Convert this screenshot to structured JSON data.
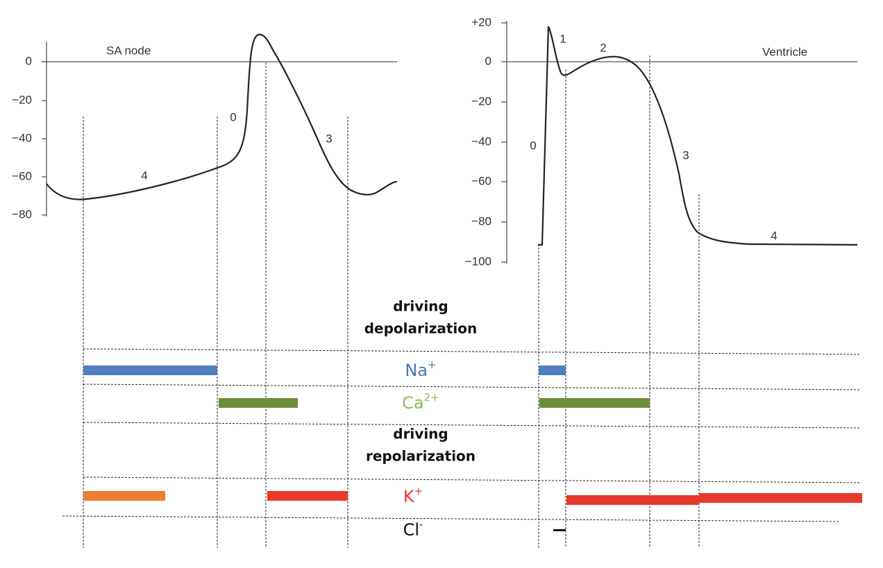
{
  "sa_node": {
    "title": "SA node",
    "yticks": [
      "0",
      "−20",
      "−40",
      "−60",
      "−80"
    ],
    "phases": [
      "0",
      "3",
      "4"
    ]
  },
  "ventricle": {
    "title": "Ventricle",
    "yticks": [
      "+20",
      "0",
      "−20",
      "−40",
      "−60",
      "−80",
      "−100"
    ],
    "phases": [
      "0",
      "1",
      "2",
      "3",
      "4"
    ]
  },
  "currents": {
    "depolarization": [
      "driving",
      "depolarization"
    ],
    "na": {
      "base": "Na",
      "sup": "+"
    },
    "ca": {
      "base": "Ca",
      "sup": "2+"
    },
    "repolarization": [
      "driving",
      "repolarization"
    ],
    "k": {
      "base": "K",
      "sup": "+"
    },
    "cl": {
      "base": "Cl",
      "sup": "-"
    }
  }
}
